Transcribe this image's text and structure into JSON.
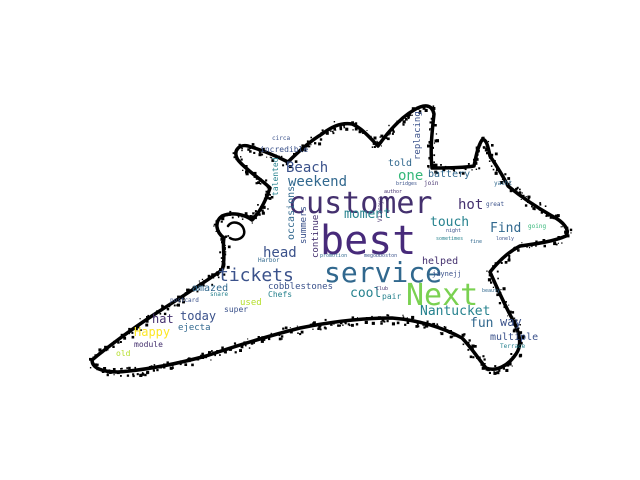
{
  "palette": {
    "background": "#ffffff",
    "outline": "#000000",
    "purple_dark": "#44306e",
    "purple": "#472a7a",
    "blue": "#3b528b",
    "steel": "#31688e",
    "teal": "#26828e",
    "green_teal": "#1f9e89",
    "green": "#35b779",
    "lime": "#6ece58",
    "yellow_green": "#b5de2b",
    "yellow": "#fde725"
  },
  "words": [
    {
      "text": "best",
      "color": "#472a7a"
    },
    {
      "text": "customer",
      "color": "#44306e"
    },
    {
      "text": "service",
      "color": "#31688e"
    },
    {
      "text": "Next",
      "color": "#7ad151"
    },
    {
      "text": "tickets",
      "color": "#3b528b"
    },
    {
      "text": "Beach",
      "color": "#3b528b"
    },
    {
      "text": "weekend",
      "color": "#31688e"
    },
    {
      "text": "one",
      "color": "#35b779"
    },
    {
      "text": "moment",
      "color": "#26828e"
    },
    {
      "text": "hot",
      "color": "#44306e"
    },
    {
      "text": "touch",
      "color": "#26828e"
    },
    {
      "text": "Find",
      "color": "#31688e"
    },
    {
      "text": "head",
      "color": "#3b528b"
    },
    {
      "text": "cool",
      "color": "#26828e"
    },
    {
      "text": "Nantucket",
      "color": "#26828e"
    },
    {
      "text": "fun",
      "color": "#31688e"
    },
    {
      "text": "way",
      "color": "#3b528b"
    },
    {
      "text": "hat",
      "color": "#44306e"
    },
    {
      "text": "today",
      "color": "#3b528b"
    },
    {
      "text": "Happy",
      "color": "#fde725"
    },
    {
      "text": "amazed",
      "color": "#31688e"
    },
    {
      "text": "multiple",
      "color": "#3b528b"
    },
    {
      "text": "helped",
      "color": "#44306e"
    },
    {
      "text": "cobblestones",
      "color": "#3b528b"
    },
    {
      "text": "ejecta",
      "color": "#31688e"
    },
    {
      "text": "continue",
      "color": "#44306e"
    },
    {
      "text": "occasions",
      "color": "#31688e"
    },
    {
      "text": "summers",
      "color": "#3b528b"
    },
    {
      "text": "incredible",
      "color": "#3b528b"
    },
    {
      "text": "talented",
      "color": "#26828e"
    },
    {
      "text": "told",
      "color": "#31688e"
    },
    {
      "text": "battery",
      "color": "#31688e"
    },
    {
      "text": "replacing",
      "color": "#3b528b"
    },
    {
      "text": "Chefs",
      "color": "#26828e"
    },
    {
      "text": "used",
      "color": "#b5de2b"
    },
    {
      "text": "super",
      "color": "#3b528b"
    },
    {
      "text": "module",
      "color": "#44306e"
    },
    {
      "text": "old",
      "color": "#b5de2b"
    },
    {
      "text": "pair",
      "color": "#26828e"
    },
    {
      "text": "jaynejj",
      "color": "#3b528b"
    },
    {
      "text": "Vizcaya",
      "color": "#44306e"
    },
    {
      "text": "Harbor",
      "color": "#31688e"
    },
    {
      "text": "postcard",
      "color": "#3b528b"
    },
    {
      "text": "snare",
      "color": "#26828e"
    },
    {
      "text": "promotion",
      "color": "#31688e"
    },
    {
      "text": "megobboston",
      "color": "#3b528b"
    },
    {
      "text": "join",
      "color": "#44306e"
    },
    {
      "text": "circa",
      "color": "#3b528b"
    },
    {
      "text": "yacht",
      "color": "#31688e"
    },
    {
      "text": "great",
      "color": "#3b528b"
    },
    {
      "text": "Club",
      "color": "#44306e"
    },
    {
      "text": "sometimes",
      "color": "#26828e"
    },
    {
      "text": "bridges",
      "color": "#3b528b"
    },
    {
      "text": "author",
      "color": "#44306e"
    },
    {
      "text": "fine",
      "color": "#31688e"
    },
    {
      "text": "lonely",
      "color": "#3b528b"
    },
    {
      "text": "Terrace",
      "color": "#26828e"
    },
    {
      "text": "going",
      "color": "#35b779"
    },
    {
      "text": "night",
      "color": "#3b528b"
    },
    {
      "text": "beauty",
      "color": "#31688e"
    }
  ]
}
